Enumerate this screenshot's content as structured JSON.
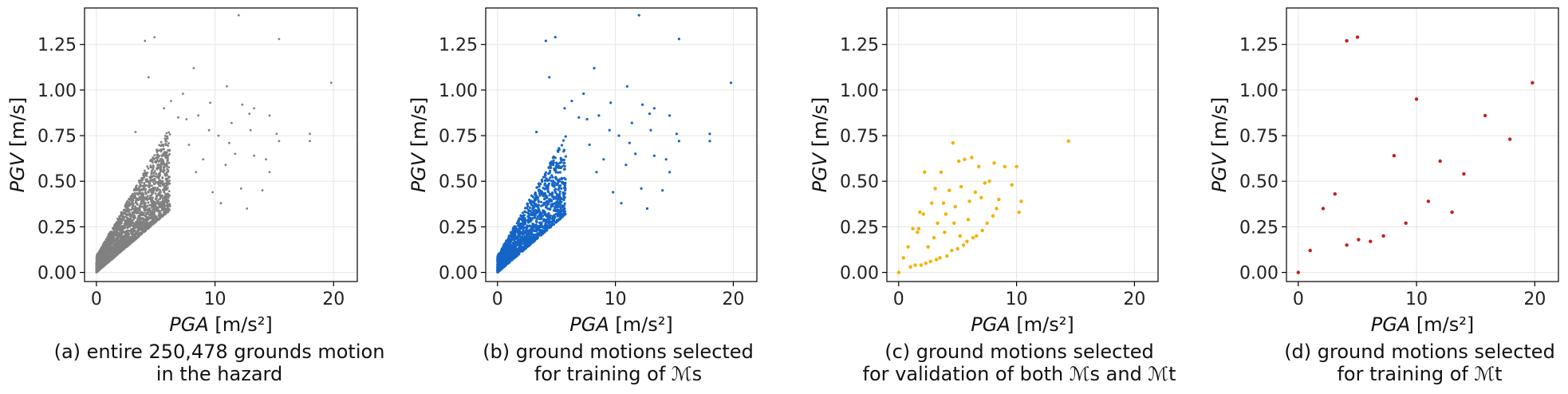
{
  "chart_data": [
    {
      "type": "scatter",
      "id": "a",
      "color": "#808080",
      "xlabel": "PGA [m/s²]",
      "ylabel": "PGV [m/s]",
      "xlabel_var": "PGA",
      "xlabel_unit": " [m/s²]",
      "ylabel_var": "PGV",
      "ylabel_unit": " [m/s]",
      "xlim": [
        -1,
        22
      ],
      "ylim": [
        -0.05,
        1.45
      ],
      "xticks": [
        "0",
        "10",
        "20"
      ],
      "yticks": [
        "0.00",
        "0.25",
        "0.50",
        "0.75",
        "1.00",
        "1.25"
      ],
      "caption_lines": [
        "(a) entire 250,478 grounds motion",
        "in the hazard"
      ],
      "density": 2600,
      "points": [
        [
          12,
          1.41
        ],
        [
          4.9,
          1.29
        ],
        [
          4.1,
          1.27
        ],
        [
          15.4,
          1.28
        ],
        [
          19.8,
          1.04
        ],
        [
          11,
          1.02
        ],
        [
          4.4,
          1.07
        ],
        [
          8.2,
          1.12
        ],
        [
          7.3,
          0.98
        ],
        [
          9.6,
          0.93
        ],
        [
          12.3,
          0.92
        ],
        [
          13.3,
          0.9
        ],
        [
          14.6,
          0.86
        ],
        [
          12.9,
          0.87
        ],
        [
          13,
          0.78
        ],
        [
          15.2,
          0.76
        ],
        [
          18,
          0.76
        ],
        [
          18,
          0.72
        ],
        [
          15.4,
          0.72
        ],
        [
          14.3,
          0.62
        ],
        [
          14.6,
          0.55
        ],
        [
          14,
          0.45
        ],
        [
          10.9,
          0.59
        ],
        [
          12.2,
          0.46
        ],
        [
          12.7,
          0.35
        ],
        [
          11.7,
          0.65
        ],
        [
          9.5,
          0.78
        ],
        [
          8.6,
          0.86
        ],
        [
          10.3,
          0.75
        ],
        [
          11.2,
          0.71
        ],
        [
          6.3,
          0.94
        ],
        [
          5.7,
          0.9
        ],
        [
          7.6,
          0.84
        ],
        [
          9,
          0.62
        ],
        [
          9.8,
          0.44
        ],
        [
          11.4,
          0.82
        ],
        [
          13.3,
          0.64
        ],
        [
          8.4,
          0.55
        ],
        [
          10.5,
          0.38
        ],
        [
          7.8,
          0.7
        ],
        [
          3.3,
          0.77
        ],
        [
          6.9,
          0.85
        ]
      ]
    },
    {
      "type": "scatter",
      "id": "b",
      "color": "#1565c8",
      "xlabel": "PGA [m/s²]",
      "ylabel": "PGV [m/s]",
      "xlabel_var": "PGA",
      "xlabel_unit": " [m/s²]",
      "ylabel_var": "PGV",
      "ylabel_unit": " [m/s]",
      "xlim": [
        -1,
        22
      ],
      "ylim": [
        -0.05,
        1.45
      ],
      "xticks": [
        "0",
        "10",
        "20"
      ],
      "yticks": [
        "0.00",
        "0.25",
        "0.50",
        "0.75",
        "1.00",
        "1.25"
      ],
      "caption_lines": [
        "(b) ground motions selected",
        "for training of ℳs"
      ],
      "caption_math": "s",
      "density": 1500,
      "points": [
        [
          12,
          1.41
        ],
        [
          4.9,
          1.29
        ],
        [
          4.1,
          1.27
        ],
        [
          15.4,
          1.28
        ],
        [
          19.8,
          1.04
        ],
        [
          11,
          1.02
        ],
        [
          4.4,
          1.07
        ],
        [
          8.2,
          1.12
        ],
        [
          7.3,
          0.98
        ],
        [
          9.6,
          0.93
        ],
        [
          12.3,
          0.92
        ],
        [
          13.3,
          0.9
        ],
        [
          14.6,
          0.86
        ],
        [
          12.9,
          0.87
        ],
        [
          13,
          0.78
        ],
        [
          15.2,
          0.76
        ],
        [
          18,
          0.76
        ],
        [
          18,
          0.72
        ],
        [
          15.4,
          0.72
        ],
        [
          14.3,
          0.62
        ],
        [
          14.6,
          0.55
        ],
        [
          14,
          0.45
        ],
        [
          10.9,
          0.59
        ],
        [
          12.2,
          0.46
        ],
        [
          12.7,
          0.35
        ],
        [
          11.7,
          0.65
        ],
        [
          9.5,
          0.78
        ],
        [
          8.6,
          0.86
        ],
        [
          10.3,
          0.75
        ],
        [
          11.2,
          0.71
        ],
        [
          6.3,
          0.94
        ],
        [
          5.7,
          0.9
        ],
        [
          7.6,
          0.84
        ],
        [
          9,
          0.62
        ],
        [
          9.8,
          0.44
        ],
        [
          11.4,
          0.82
        ],
        [
          13.3,
          0.64
        ],
        [
          8.4,
          0.55
        ],
        [
          10.5,
          0.38
        ],
        [
          7.8,
          0.7
        ],
        [
          3.3,
          0.77
        ],
        [
          6.9,
          0.85
        ]
      ]
    },
    {
      "type": "scatter",
      "id": "c",
      "color": "#f5b000",
      "xlabel": "PGA [m/s²]",
      "ylabel": "PGV [m/s]",
      "xlabel_var": "PGA",
      "xlabel_unit": " [m/s²]",
      "ylabel_var": "PGV",
      "ylabel_unit": " [m/s]",
      "xlim": [
        -1,
        22
      ],
      "ylim": [
        -0.05,
        1.45
      ],
      "xticks": [
        "0",
        "10",
        "20"
      ],
      "yticks": [
        "0.00",
        "0.25",
        "0.50",
        "0.75",
        "1.00",
        "1.25"
      ],
      "caption_lines": [
        "(c) ground motions selected",
        "for validation of both ℳs and ℳt"
      ],
      "density": 0,
      "points": [
        [
          0,
          0
        ],
        [
          0.4,
          0.08
        ],
        [
          0.8,
          0.14
        ],
        [
          1,
          0.03
        ],
        [
          1.2,
          0.24
        ],
        [
          1.4,
          0.04
        ],
        [
          1.6,
          0.22
        ],
        [
          1.7,
          0.24
        ],
        [
          1.8,
          0.33
        ],
        [
          1.9,
          0.04
        ],
        [
          2.1,
          0.32
        ],
        [
          2.2,
          0.55
        ],
        [
          2.3,
          0.05
        ],
        [
          2.5,
          0.14
        ],
        [
          2.7,
          0.06
        ],
        [
          2.8,
          0.38
        ],
        [
          3,
          0.19
        ],
        [
          3.1,
          0.46
        ],
        [
          3.2,
          0.07
        ],
        [
          3.3,
          0.27
        ],
        [
          3.5,
          0.08
        ],
        [
          3.6,
          0.55
        ],
        [
          3.8,
          0.38
        ],
        [
          3.9,
          0.22
        ],
        [
          4,
          0.32
        ],
        [
          4.1,
          0.09
        ],
        [
          4.3,
          0.45
        ],
        [
          4.5,
          0.12
        ],
        [
          4.6,
          0.71
        ],
        [
          4.7,
          0.27
        ],
        [
          4.8,
          0.36
        ],
        [
          5,
          0.13
        ],
        [
          5.1,
          0.61
        ],
        [
          5.2,
          0.2
        ],
        [
          5.3,
          0.47
        ],
        [
          5.5,
          0.15
        ],
        [
          5.6,
          0.62
        ],
        [
          5.8,
          0.17
        ],
        [
          5.9,
          0.29
        ],
        [
          6,
          0.39
        ],
        [
          6.2,
          0.63
        ],
        [
          6.3,
          0.19
        ],
        [
          6.5,
          0.44
        ],
        [
          6.6,
          0.2
        ],
        [
          6.8,
          0.58
        ],
        [
          7,
          0.41
        ],
        [
          7.1,
          0.23
        ],
        [
          7.3,
          0.49
        ],
        [
          7.5,
          0.27
        ],
        [
          7.7,
          0.5
        ],
        [
          8,
          0.31
        ],
        [
          8.1,
          0.6
        ],
        [
          8.3,
          0.35
        ],
        [
          8.5,
          0.4
        ],
        [
          9,
          0.58
        ],
        [
          9.6,
          0.48
        ],
        [
          10,
          0.58
        ],
        [
          10.2,
          0.33
        ],
        [
          10.4,
          0.39
        ],
        [
          14.4,
          0.72
        ]
      ]
    },
    {
      "type": "scatter",
      "id": "d",
      "color": "#c41e1e",
      "xlabel": "PGA [m/s²]",
      "ylabel": "PGV [m/s]",
      "xlabel_var": "PGA",
      "xlabel_unit": " [m/s²]",
      "ylabel_var": "PGV",
      "ylabel_unit": " [m/s]",
      "xlim": [
        -1,
        22
      ],
      "ylim": [
        -0.05,
        1.45
      ],
      "xticks": [
        "0",
        "10",
        "20"
      ],
      "yticks": [
        "0.00",
        "0.25",
        "0.50",
        "0.75",
        "1.00",
        "1.25"
      ],
      "caption_lines": [
        "(d) ground motions selected",
        "for training of ℳt"
      ],
      "density": 0,
      "points": [
        [
          0,
          0
        ],
        [
          1,
          0.12
        ],
        [
          2.1,
          0.35
        ],
        [
          3.1,
          0.43
        ],
        [
          4.1,
          0.15
        ],
        [
          4.1,
          1.27
        ],
        [
          5,
          1.29
        ],
        [
          5.1,
          0.18
        ],
        [
          6.1,
          0.17
        ],
        [
          7.2,
          0.2
        ],
        [
          8.1,
          0.64
        ],
        [
          9.1,
          0.27
        ],
        [
          10,
          0.95
        ],
        [
          11,
          0.39
        ],
        [
          12,
          0.61
        ],
        [
          13,
          0.33
        ],
        [
          14,
          0.54
        ],
        [
          15.8,
          0.86
        ],
        [
          17.9,
          0.73
        ],
        [
          19.8,
          1.04
        ]
      ]
    }
  ]
}
